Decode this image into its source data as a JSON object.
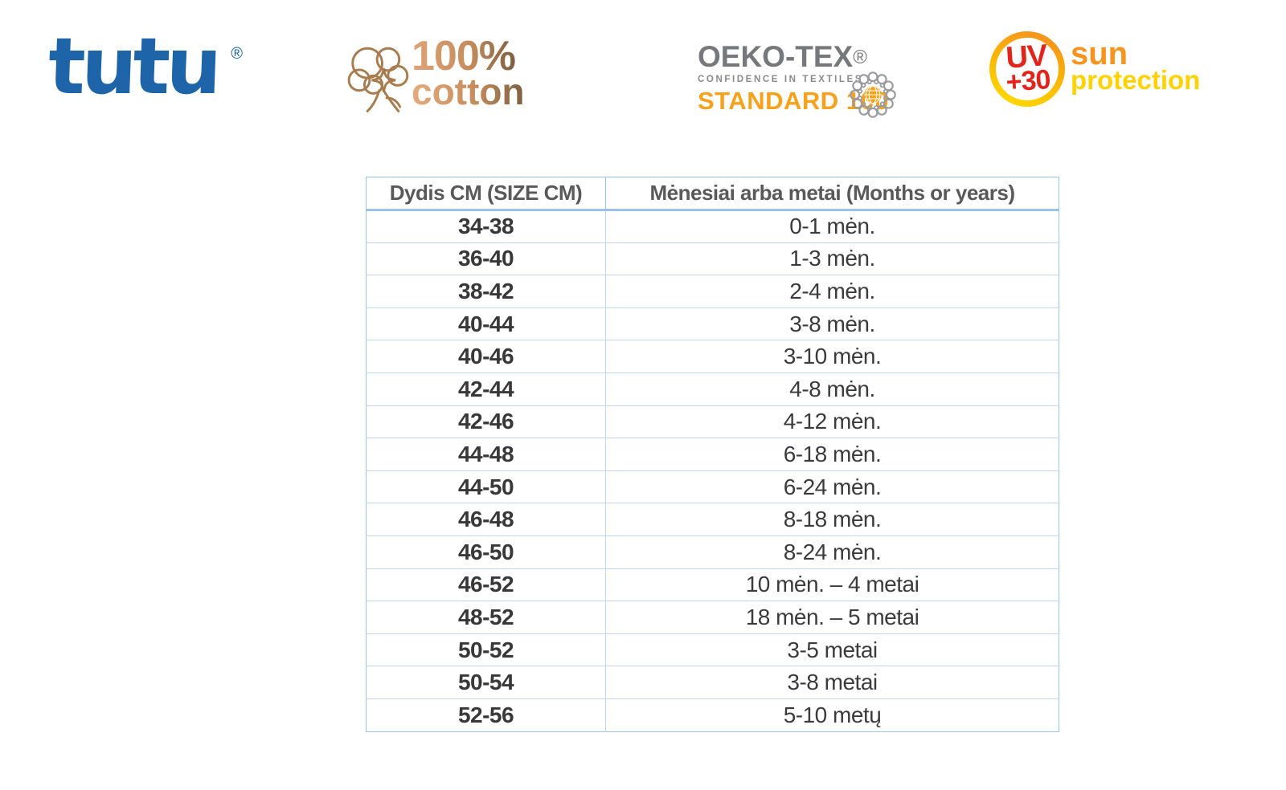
{
  "logos": {
    "tutu": {
      "text": "tutu",
      "registered": "®"
    },
    "cotton": {
      "percent": "100%",
      "word": "cotton"
    },
    "oeko": {
      "brand": "OEKO-TEX",
      "registered": "®",
      "tagline": "CONFIDENCE IN TEXTILES",
      "standard": "STANDARD 100"
    },
    "uv": {
      "uv": "UV",
      "factor": "+30",
      "sun": "sun",
      "protection": "protection"
    }
  },
  "table": {
    "headers": [
      "Dydis CM (SIZE CM)",
      "Mėnesiai arba metai (Months or years)"
    ],
    "rows": [
      [
        "34-38",
        "0-1 mėn."
      ],
      [
        "36-40",
        "1-3 mėn."
      ],
      [
        "38-42",
        "2-4 mėn."
      ],
      [
        "40-44",
        "3-8 mėn."
      ],
      [
        "40-46",
        "3-10 mėn."
      ],
      [
        "42-44",
        "4-8 mėn."
      ],
      [
        "42-46",
        "4-12 mėn."
      ],
      [
        "44-48",
        "6-18 mėn."
      ],
      [
        "44-50",
        "6-24 mėn."
      ],
      [
        "46-48",
        "8-18 mėn."
      ],
      [
        "46-50",
        "8-24 mėn."
      ],
      [
        "46-52",
        "10 mėn. – 4 metai"
      ],
      [
        "48-52",
        "18 mėn. – 5 metai"
      ],
      [
        "50-52",
        "3-5 metai"
      ],
      [
        "50-54",
        "3-8 metai"
      ],
      [
        "52-56",
        "5-10 metų"
      ]
    ]
  },
  "colors": {
    "tutu_blue": "#1e64a8",
    "cotton_brown": "#a97c50",
    "cotton_text_light": "#dfa377",
    "cotton_text_dark": "#7d5f40",
    "oeko_gray": "#77787b",
    "oeko_orange": "#f7a21c",
    "uv_red": "#e1251b",
    "sun_orange": "#f7941d",
    "protection_yellow": "#ffd200",
    "table_border": "#9cc2e5",
    "row_border": "#bdd7ee",
    "header_text": "#595959",
    "cell_text": "#3b3b3b"
  }
}
